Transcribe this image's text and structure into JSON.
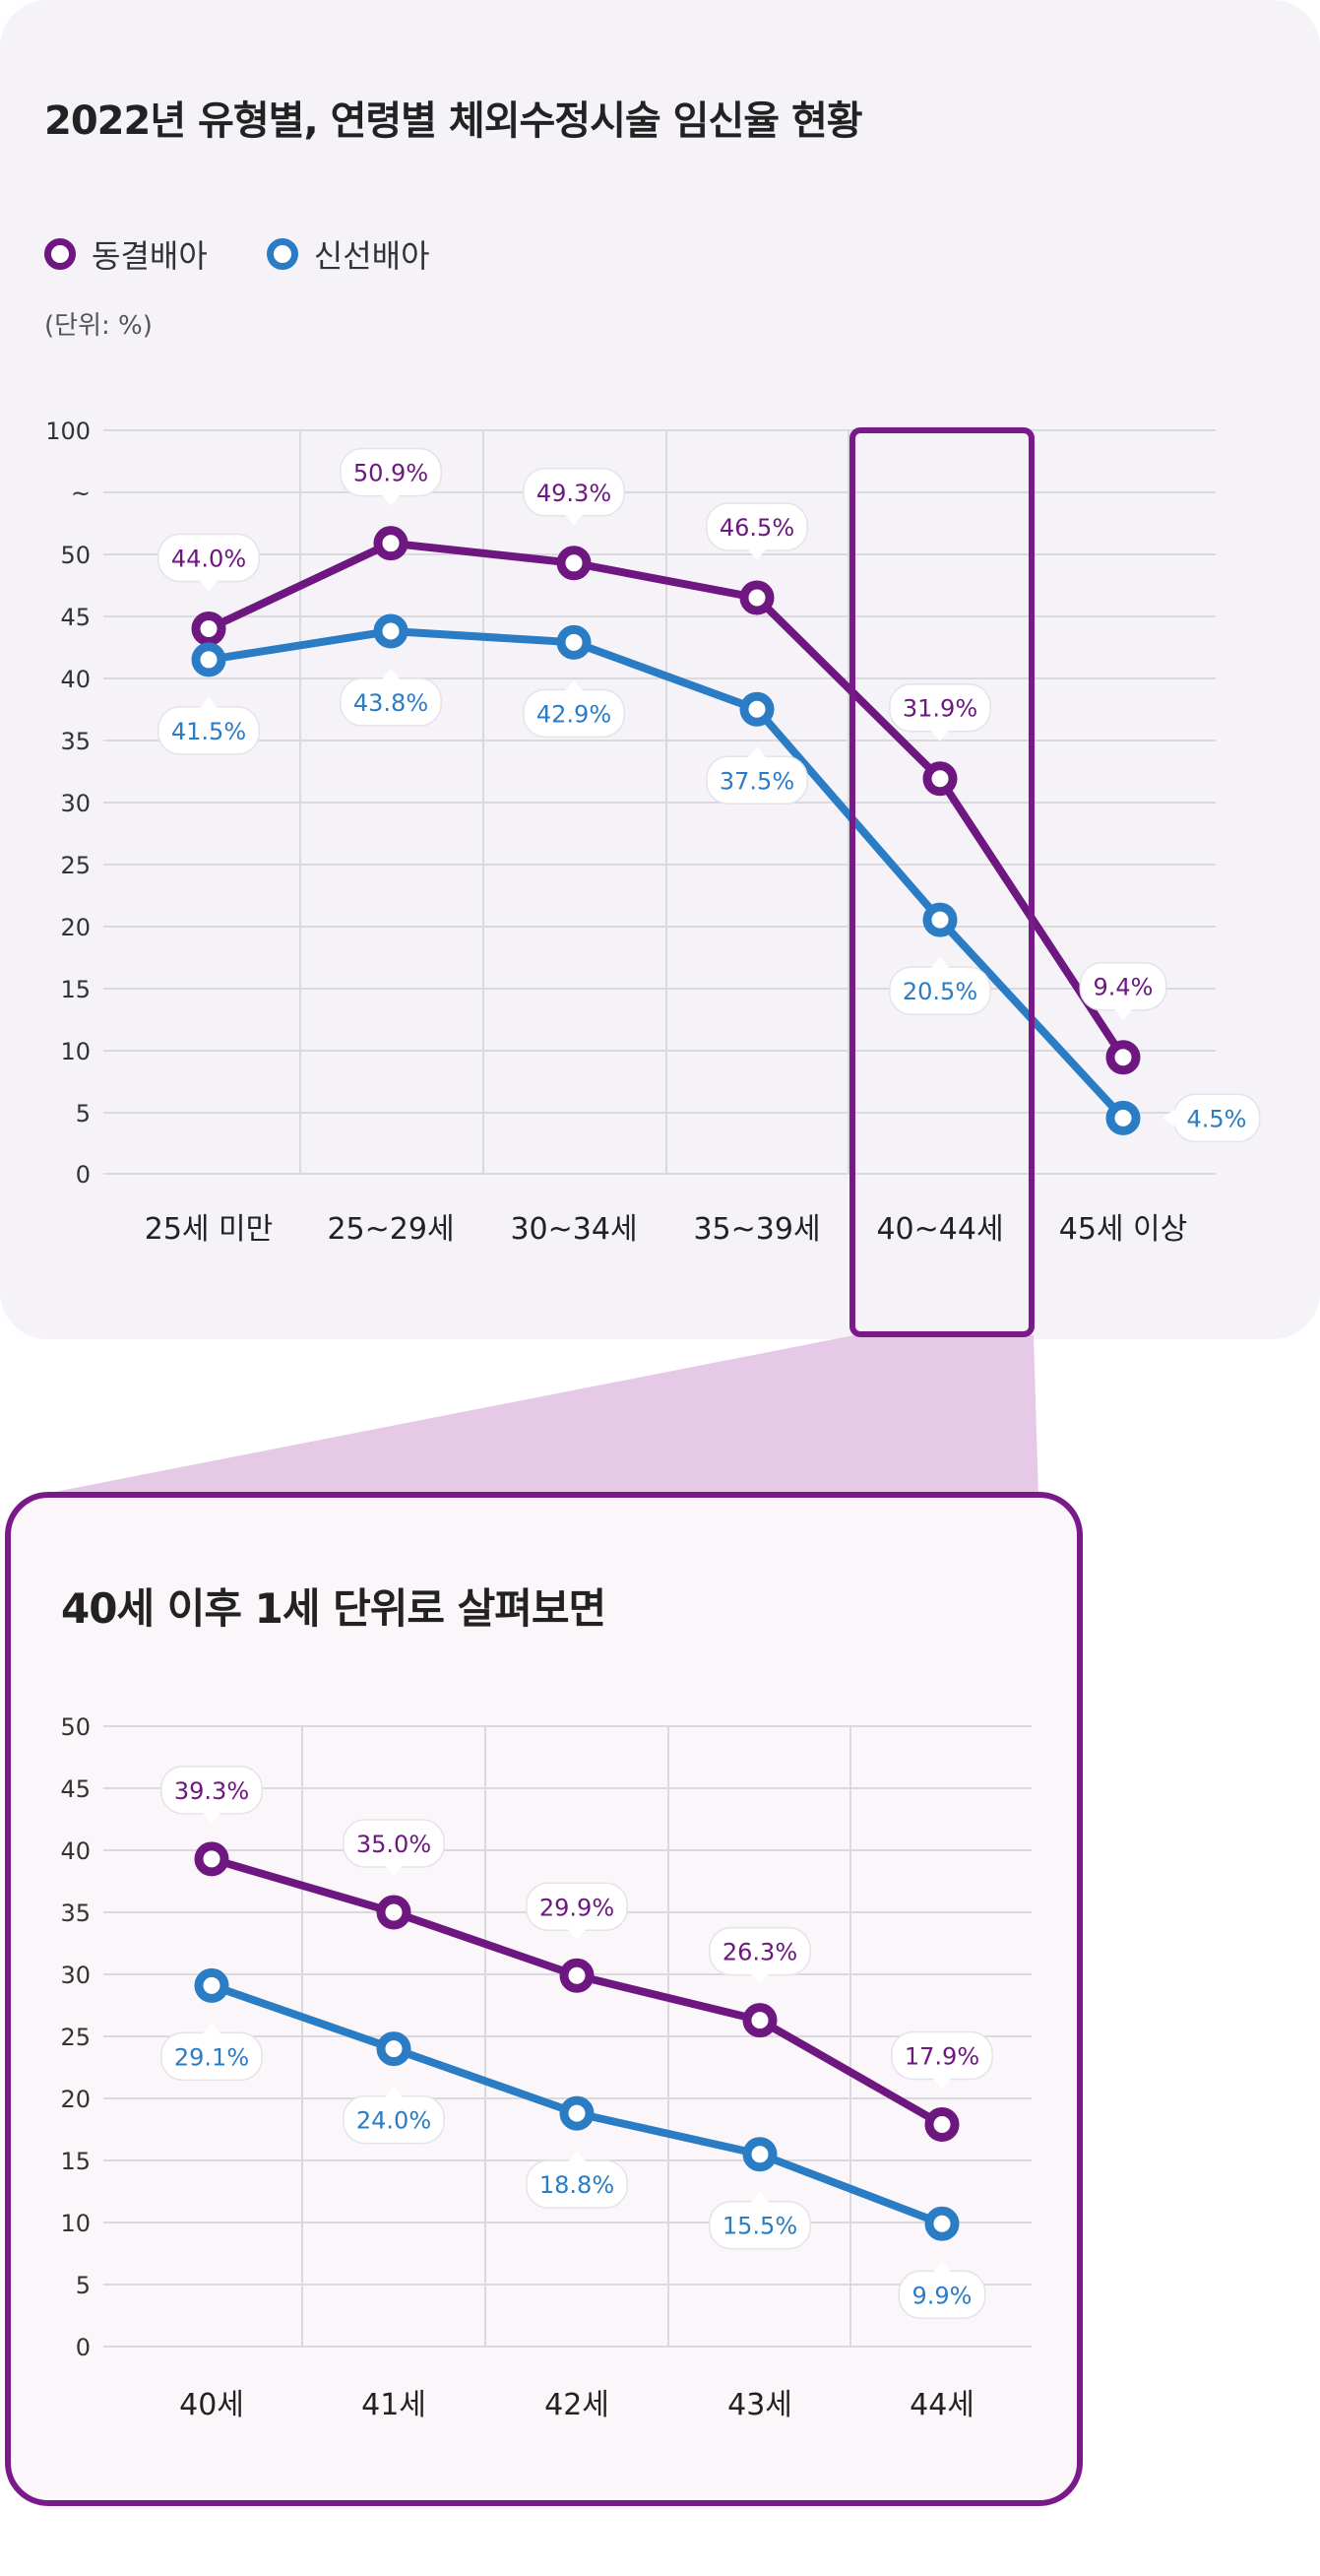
{
  "title": "2022년 유형별, 연령별 체외수정시술 임신율 현황",
  "legend": {
    "frozen": "동결배아",
    "fresh": "신선배아"
  },
  "unit": "(단위: %)",
  "colors": {
    "frozen": "#6e1780",
    "fresh": "#2a7cc4",
    "highlight": "#7a1a8a",
    "connector": "#e5c9e6"
  },
  "zoom_title": "40세 이후 1세 단위로 살펴보면",
  "chart_data": [
    {
      "type": "line",
      "title": "2022년 유형별, 연령별 체외수정시술 임신율 현황",
      "categories": [
        "25세 미만",
        "25~29세",
        "30~34세",
        "35~39세",
        "40~44세",
        "45세 이상"
      ],
      "y_tick_labels": [
        "100",
        "~",
        "50",
        "45",
        "40",
        "35",
        "30",
        "25",
        "20",
        "15",
        "10",
        "5",
        "0"
      ],
      "ylim": [
        0,
        100
      ],
      "axis_break": "50~100",
      "grid": true,
      "highlighted_category": "40~44세",
      "series": [
        {
          "name": "동결배아",
          "values": [
            44.0,
            50.9,
            49.3,
            46.5,
            31.9,
            9.4
          ],
          "labels": [
            "44.0%",
            "50.9%",
            "49.3%",
            "46.5%",
            "31.9%",
            "9.4%"
          ]
        },
        {
          "name": "신선배아",
          "values": [
            41.5,
            43.8,
            42.9,
            37.5,
            20.5,
            4.5
          ],
          "labels": [
            "41.5%",
            "43.8%",
            "42.9%",
            "37.5%",
            "20.5%",
            "4.5%"
          ]
        }
      ]
    },
    {
      "type": "line",
      "title": "40세 이후 1세 단위로 살펴보면",
      "categories": [
        "40세",
        "41세",
        "42세",
        "43세",
        "44세"
      ],
      "y_tick_labels": [
        "50",
        "45",
        "40",
        "35",
        "30",
        "25",
        "20",
        "15",
        "10",
        "5",
        "0"
      ],
      "ylim": [
        0,
        50
      ],
      "grid": true,
      "series": [
        {
          "name": "동결배아",
          "values": [
            39.3,
            35.0,
            29.9,
            26.3,
            17.9
          ],
          "labels": [
            "39.3%",
            "35.0%",
            "29.9%",
            "26.3%",
            "17.9%"
          ]
        },
        {
          "name": "신선배아",
          "values": [
            29.1,
            24.0,
            18.8,
            15.5,
            9.9
          ],
          "labels": [
            "29.1%",
            "24.0%",
            "18.8%",
            "15.5%",
            "9.9%"
          ]
        }
      ]
    }
  ]
}
